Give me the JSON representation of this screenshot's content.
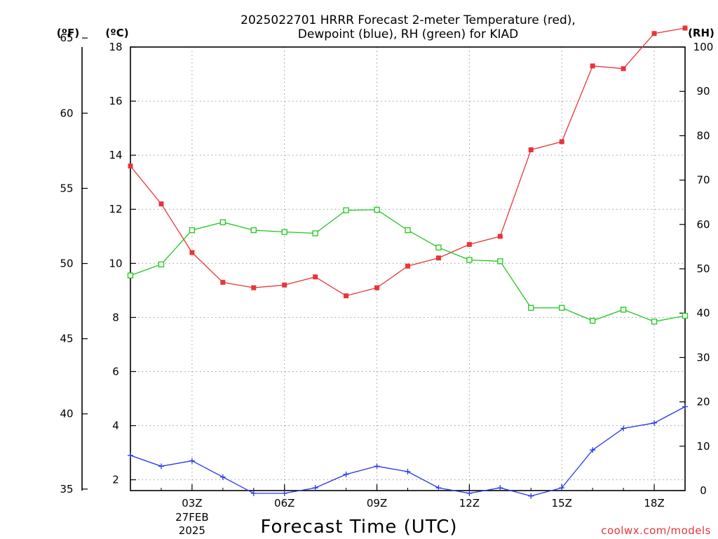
{
  "chart_data": {
    "type": "line",
    "title_lines": [
      "2025022701 HRRR Forecast 2-meter Temperature (red),",
      "Dewpoint (blue), RH (green) for KIAD"
    ],
    "xlabel": "Forecast Time (UTC)",
    "credit": "coolwx.com/models",
    "units": {
      "fahrenheit": "(ºF)",
      "celsius": "(ºC)",
      "rh": "(RH)"
    },
    "x": [
      "01Z",
      "02Z",
      "03Z",
      "04Z",
      "05Z",
      "06Z",
      "07Z",
      "08Z",
      "09Z",
      "10Z",
      "11Z",
      "12Z",
      "13Z",
      "14Z",
      "15Z",
      "16Z",
      "17Z",
      "18Z",
      "19Z"
    ],
    "x_ticks": [
      {
        "label": "03Z",
        "index": 2,
        "sub": [
          "27FEB",
          "2025"
        ]
      },
      {
        "label": "06Z",
        "index": 5
      },
      {
        "label": "09Z",
        "index": 8
      },
      {
        "label": "12Z",
        "index": 11
      },
      {
        "label": "15Z",
        "index": 14
      },
      {
        "label": "18Z",
        "index": 17
      }
    ],
    "y_celsius": {
      "range": [
        1.6,
        18.0
      ],
      "ticks": [
        "2",
        "4",
        "6",
        "8",
        "10",
        "12",
        "14",
        "16",
        "18"
      ]
    },
    "y_fahrenheit": {
      "range": [
        34.9,
        64.4
      ],
      "ticks": [
        "35",
        "40",
        "45",
        "50",
        "55",
        "60",
        "65"
      ]
    },
    "y_rh": {
      "range": [
        0,
        100
      ],
      "ticks": [
        "0",
        "10",
        "20",
        "30",
        "40",
        "50",
        "60",
        "70",
        "80",
        "90",
        "100"
      ]
    },
    "grid": true,
    "series": [
      {
        "name": "Temperature (red)",
        "color": "#e8353a",
        "marker": "filled-square",
        "axis": "celsius",
        "values": [
          13.6,
          12.2,
          10.4,
          9.3,
          9.1,
          9.2,
          9.5,
          8.8,
          9.1,
          9.9,
          10.2,
          10.7,
          11.0,
          14.2,
          14.5,
          17.3,
          17.2,
          18.5,
          18.7
        ]
      },
      {
        "name": "Dewpoint (blue)",
        "color": "#2536e8",
        "marker": "plus",
        "axis": "celsius",
        "values": [
          2.9,
          2.5,
          2.7,
          2.1,
          1.5,
          1.5,
          1.7,
          2.2,
          2.5,
          2.3,
          1.7,
          1.5,
          1.7,
          1.4,
          1.7,
          3.1,
          3.9,
          4.1,
          4.7
        ]
      },
      {
        "name": "RH (green)",
        "color": "#1ec81e",
        "marker": "open-square",
        "axis": "rh",
        "values": [
          48.5,
          51.0,
          58.7,
          60.5,
          58.7,
          58.3,
          58.0,
          63.2,
          63.3,
          58.7,
          54.8,
          52.0,
          51.7,
          41.2,
          41.2,
          38.3,
          40.8,
          38.1,
          39.4
        ]
      }
    ]
  }
}
